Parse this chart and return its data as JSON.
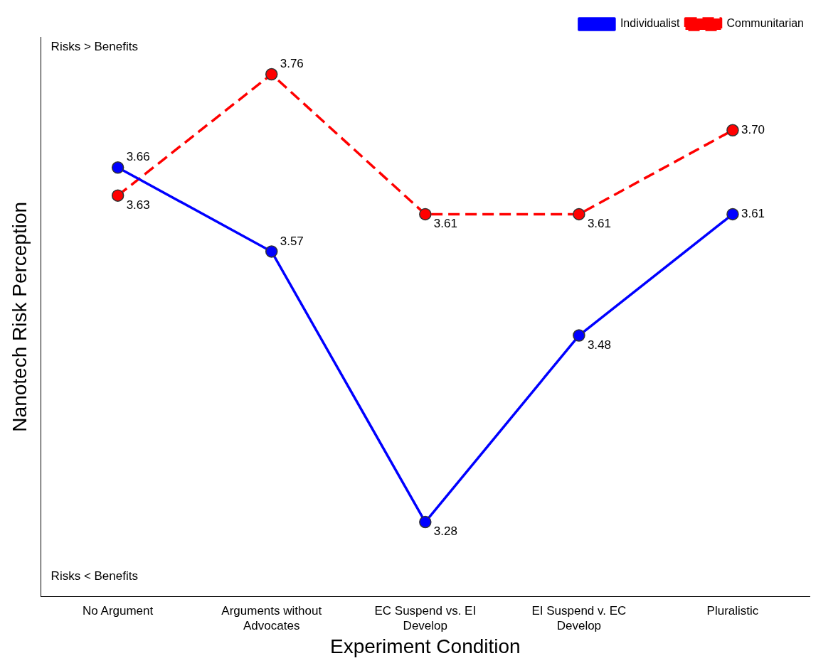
{
  "chart_data": {
    "type": "line",
    "xlabel": "Experiment Condition",
    "ylabel": "Nanotech Risk Perception",
    "categories": [
      "No Argument",
      "Arguments without Advocates",
      "EC Suspend vs. EI Develop",
      "EI Suspend v. EC Develop",
      "Pluralistic"
    ],
    "series": [
      {
        "name": "Individualist",
        "color": "#0000ff",
        "values": [
          3.66,
          3.57,
          3.28,
          3.48,
          3.61
        ],
        "value_labels": [
          "3.66",
          "3.57",
          "3.28",
          "3.48",
          "3.61"
        ],
        "line_style": "solid"
      },
      {
        "name": "Communitarian",
        "color": "#ff0000",
        "values": [
          3.63,
          3.76,
          3.61,
          3.61,
          3.7
        ],
        "value_labels": [
          "3.63",
          "3.76",
          "3.61",
          "3.61",
          "3.70"
        ],
        "line_style": "dashed"
      }
    ],
    "tick_labels": "x",
    "grid": false,
    "legend": "top right",
    "marker": "circle",
    "annotations": [
      "Risks > Benefits",
      "Risks < Benefits"
    ]
  }
}
